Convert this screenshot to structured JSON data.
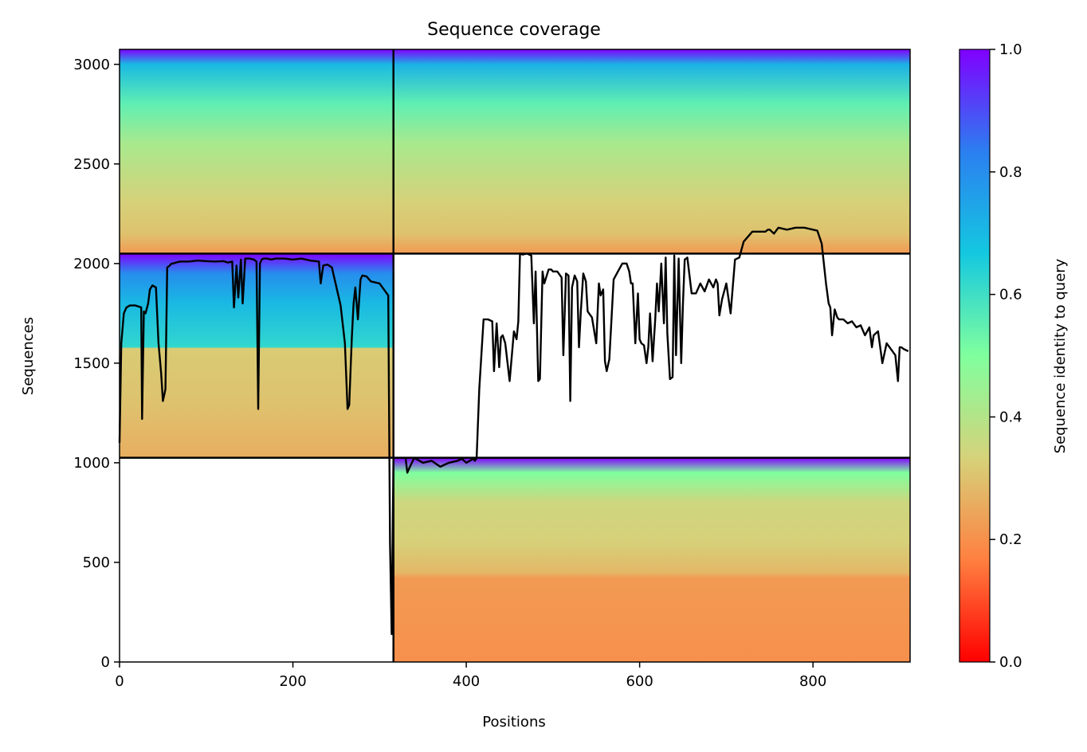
{
  "colors": {
    "trace": "#000000",
    "colormap": [
      "#ff0000",
      "#ff8040",
      "#d6d27a",
      "#80ff9e",
      "#14c8e0",
      "#2b7ff0",
      "#8000ff"
    ]
  },
  "chart_data": {
    "type": "heatmap",
    "title": "Sequence coverage",
    "xlabel": "Positions",
    "ylabel": "Sequences",
    "xlim": [
      0,
      912
    ],
    "ylim": [
      0,
      3075
    ],
    "xticks": [
      0,
      200,
      400,
      600,
      800
    ],
    "yticks": [
      0,
      500,
      1000,
      1500,
      2000,
      2500,
      3000
    ],
    "colorbar": {
      "label": "Sequence identity to query",
      "range": [
        0.0,
        1.0
      ],
      "ticks": [
        0.0,
        0.2,
        0.4,
        0.6,
        0.8,
        1.0
      ],
      "colormap": "rainbow"
    },
    "block_boundaries": {
      "x": [
        316
      ],
      "y": [
        1025,
        2050
      ]
    },
    "blocks": [
      {
        "x": [
          0,
          316
        ],
        "y": [
          2050,
          3075
        ],
        "identity_top": 1.0,
        "identity_bottom": 0.22,
        "bands": [
          [
            3075,
            1.0
          ],
          [
            3000,
            0.7
          ],
          [
            2800,
            0.55
          ],
          [
            2600,
            0.42
          ],
          [
            2300,
            0.33
          ],
          [
            2150,
            0.3
          ],
          [
            2050,
            0.22
          ]
        ]
      },
      {
        "x": [
          316,
          912
        ],
        "y": [
          2050,
          3075
        ],
        "identity_top": 1.0,
        "identity_bottom": 0.22,
        "bands": [
          [
            3075,
            1.0
          ],
          [
            3000,
            0.72
          ],
          [
            2800,
            0.55
          ],
          [
            2600,
            0.42
          ],
          [
            2300,
            0.33
          ],
          [
            2150,
            0.3
          ],
          [
            2050,
            0.22
          ]
        ]
      },
      {
        "x": [
          0,
          316
        ],
        "y": [
          1025,
          2050
        ],
        "identity_top": 1.0,
        "identity_bottom": 0.25,
        "bands": [
          [
            2050,
            1.0
          ],
          [
            1950,
            0.8
          ],
          [
            1800,
            0.7
          ],
          [
            1580,
            0.62
          ],
          [
            1575,
            0.32
          ],
          [
            1300,
            0.3
          ],
          [
            1025,
            0.26
          ]
        ]
      },
      {
        "x": [
          316,
          912
        ],
        "y": [
          0,
          1025
        ],
        "identity_top": 1.0,
        "identity_bottom": 0.2,
        "bands": [
          [
            1025,
            1.0
          ],
          [
            950,
            0.5
          ],
          [
            800,
            0.35
          ],
          [
            600,
            0.33
          ],
          [
            450,
            0.28
          ],
          [
            420,
            0.22
          ],
          [
            0,
            0.2
          ]
        ]
      }
    ],
    "coverage_trace": {
      "name": "coverage",
      "x": [
        0,
        2,
        5,
        8,
        12,
        18,
        25,
        26,
        28,
        30,
        33,
        35,
        38,
        42,
        45,
        48,
        50,
        52,
        53,
        55,
        58,
        60,
        62,
        65,
        70,
        80,
        90,
        100,
        110,
        120,
        125,
        130,
        132,
        135,
        137,
        140,
        142,
        145,
        150,
        155,
        158,
        160,
        162,
        164,
        166,
        170,
        175,
        180,
        190,
        200,
        210,
        220,
        230,
        232,
        235,
        240,
        245,
        255,
        260,
        263,
        265,
        268,
        270,
        272,
        275,
        278,
        280,
        285,
        290,
        300,
        310,
        312,
        314,
        316,
        330,
        332,
        335,
        340,
        350,
        360,
        370,
        380,
        390,
        395,
        400,
        408,
        410,
        412,
        415,
        420,
        425,
        430,
        432,
        435,
        438,
        440,
        442,
        445,
        450,
        455,
        458,
        460,
        462,
        465,
        470,
        475,
        478,
        480,
        483,
        485,
        488,
        490,
        495,
        498,
        500,
        505,
        510,
        512,
        515,
        518,
        520,
        522,
        525,
        528,
        530,
        532,
        535,
        538,
        540,
        545,
        550,
        553,
        555,
        558,
        560,
        562,
        565,
        570,
        575,
        580,
        585,
        588,
        590,
        592,
        595,
        598,
        600,
        602,
        605,
        608,
        610,
        612,
        615,
        618,
        620,
        622,
        625,
        628,
        630,
        632,
        635,
        638,
        640,
        642,
        645,
        648,
        650,
        652,
        655,
        660,
        665,
        670,
        675,
        680,
        685,
        688,
        690,
        692,
        695,
        700,
        705,
        710,
        715,
        720,
        730,
        740,
        745,
        748,
        750,
        755,
        760,
        770,
        780,
        790,
        800,
        805,
        810,
        815,
        818,
        820,
        822,
        825,
        828,
        830,
        835,
        840,
        845,
        850,
        855,
        860,
        865,
        868,
        870,
        875,
        880,
        885,
        890,
        895,
        898,
        900,
        902,
        905,
        910,
        912
      ],
      "y": [
        1100,
        1600,
        1750,
        1780,
        1790,
        1790,
        1780,
        1220,
        1760,
        1750,
        1800,
        1870,
        1890,
        1880,
        1600,
        1450,
        1310,
        1350,
        1370,
        1980,
        1990,
        2000,
        2000,
        2005,
        2010,
        2010,
        2015,
        2012,
        2010,
        2012,
        2005,
        2010,
        1780,
        1990,
        1830,
        2020,
        1800,
        2025,
        2025,
        2020,
        2010,
        1270,
        2000,
        2020,
        2025,
        2025,
        2020,
        2025,
        2025,
        2020,
        2025,
        2015,
        2010,
        1900,
        1990,
        1995,
        1980,
        1790,
        1600,
        1270,
        1290,
        1630,
        1800,
        1880,
        1720,
        1920,
        1940,
        1935,
        1910,
        1900,
        1840,
        600,
        140,
        1025,
        1025,
        950,
        980,
        1025,
        1000,
        1010,
        980,
        1000,
        1010,
        1020,
        1000,
        1020,
        1010,
        1025,
        1370,
        1720,
        1720,
        1710,
        1460,
        1700,
        1480,
        1630,
        1640,
        1600,
        1410,
        1660,
        1620,
        1710,
        2050,
        2045,
        2050,
        2040,
        1700,
        1960,
        1410,
        1420,
        1960,
        1900,
        1970,
        1970,
        1960,
        1960,
        1930,
        1540,
        1950,
        1940,
        1310,
        1880,
        1940,
        1910,
        1580,
        1750,
        1950,
        1910,
        1760,
        1730,
        1600,
        1900,
        1840,
        1870,
        1510,
        1460,
        1520,
        1920,
        1960,
        2000,
        2000,
        1960,
        1900,
        1900,
        1600,
        1850,
        1620,
        1600,
        1590,
        1500,
        1580,
        1750,
        1510,
        1720,
        1900,
        1760,
        2000,
        1700,
        2030,
        1650,
        1420,
        1430,
        2040,
        1540,
        2025,
        1500,
        1800,
        2020,
        2030,
        1850,
        1850,
        1900,
        1860,
        1920,
        1880,
        1920,
        1900,
        1740,
        1820,
        1900,
        1750,
        2020,
        2030,
        2110,
        2160,
        2160,
        2160,
        2170,
        2170,
        2150,
        2180,
        2170,
        2180,
        2180,
        2170,
        2165,
        2100,
        1900,
        1800,
        1780,
        1640,
        1770,
        1730,
        1720,
        1720,
        1700,
        1710,
        1680,
        1690,
        1640,
        1680,
        1580,
        1640,
        1660,
        1500,
        1600,
        1570,
        1540,
        1410,
        1580,
        1580,
        1570,
        1560
      ]
    }
  }
}
